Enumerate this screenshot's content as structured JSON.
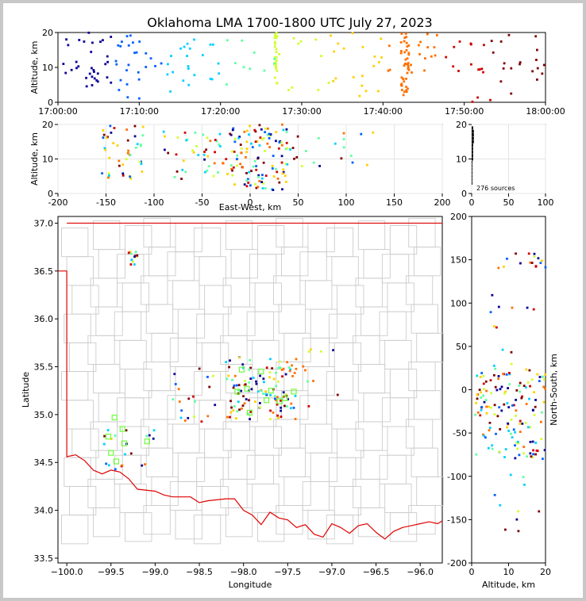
{
  "chart_data": [
    {
      "id": "time_height",
      "type": "scatter",
      "title": "Oklahoma LMA 1700-1800 UTC July 27, 2023",
      "xlabel": "",
      "ylabel": "Altitude, km",
      "xticks": [
        "17:00:00",
        "17:10:00",
        "17:20:00",
        "17:30:00",
        "17:40:00",
        "17:50:00",
        "18:00:00"
      ],
      "xlim_minutes": [
        0,
        60
      ],
      "ylim": [
        0,
        20
      ],
      "yticks": [
        0,
        10,
        20
      ],
      "color_by": "time",
      "colormap": [
        "#0a0096",
        "#0060ff",
        "#00d0ff",
        "#60ffa0",
        "#d0ff30",
        "#ffd000",
        "#ff7000",
        "#d00000",
        "#800000"
      ],
      "clusters": [
        {
          "t": [
            0,
            6
          ],
          "z": [
            3,
            20
          ],
          "n": 28
        },
        {
          "t": [
            6,
            12
          ],
          "z": [
            1,
            20
          ],
          "n": 30
        },
        {
          "t": [
            12,
            18
          ],
          "z": [
            3,
            18
          ],
          "n": 18
        },
        {
          "t": [
            18,
            26
          ],
          "z": [
            5,
            18
          ],
          "n": 14
        },
        {
          "t": [
            26.6,
            27.0
          ],
          "z": [
            5,
            20
          ],
          "n": 26
        },
        {
          "t": [
            27,
            36
          ],
          "z": [
            2,
            20
          ],
          "n": 16
        },
        {
          "t": [
            36,
            42
          ],
          "z": [
            1,
            20
          ],
          "n": 16
        },
        {
          "t": [
            42.2,
            43.2
          ],
          "z": [
            2,
            20
          ],
          "n": 40
        },
        {
          "t": [
            43,
            50
          ],
          "z": [
            8,
            20
          ],
          "n": 20
        },
        {
          "t": [
            50,
            56
          ],
          "z": [
            0,
            20
          ],
          "n": 20
        },
        {
          "t": [
            56,
            60
          ],
          "z": [
            5,
            20
          ],
          "n": 10
        }
      ]
    },
    {
      "id": "ew_height",
      "type": "scatter",
      "xlabel": "East-West, km",
      "ylabel": "Altitude, km",
      "xlim": [
        -200,
        200
      ],
      "xticks": [
        -200,
        -150,
        -100,
        -50,
        0,
        50,
        100,
        150,
        200
      ],
      "ylim": [
        0,
        20
      ],
      "yticks": [
        0,
        10,
        20
      ],
      "clusters": [
        {
          "x": [
            -20,
            40
          ],
          "z": [
            1,
            20
          ],
          "n": 120
        },
        {
          "x": [
            -155,
            -110
          ],
          "z": [
            4,
            20
          ],
          "n": 45
        },
        {
          "x": [
            -90,
            -50
          ],
          "z": [
            3,
            19
          ],
          "n": 20
        },
        {
          "x": [
            -50,
            -20
          ],
          "z": [
            5,
            18
          ],
          "n": 25
        },
        {
          "x": [
            40,
            100
          ],
          "z": [
            7,
            18
          ],
          "n": 15
        },
        {
          "x": [
            105,
            130
          ],
          "z": [
            8,
            20
          ],
          "n": 5
        }
      ]
    },
    {
      "id": "histogram",
      "type": "bar",
      "orientation": "horizontal",
      "annotation": "276 sources",
      "xlim": [
        0,
        100
      ],
      "xticks": [
        0,
        50,
        100
      ],
      "ylim": [
        0,
        20
      ],
      "yticks": [
        0,
        10,
        20
      ],
      "altitude_bins_km": [
        3,
        4,
        5,
        6,
        7,
        8,
        9,
        10,
        11,
        12,
        13,
        14,
        15,
        16,
        17,
        18,
        19
      ],
      "counts": [
        1,
        1,
        1,
        1,
        1,
        1,
        1,
        2,
        2,
        2,
        2,
        2,
        3,
        3,
        3,
        3,
        2
      ]
    },
    {
      "id": "plan_view",
      "type": "scatter",
      "xlabel": "Longitude",
      "ylabel": "Latitude",
      "xlim": [
        -100.1,
        -95.75
      ],
      "xticks": [
        -100.0,
        -99.5,
        -99.0,
        -98.5,
        -98.0,
        -97.5,
        -97.0,
        -96.5,
        -96.0
      ],
      "xtick_labels": [
        "−100.0",
        "−99.5",
        "−99.0",
        "−98.5",
        "−98.0",
        "−97.5",
        "−97.0",
        "−96.5",
        "−96.0"
      ],
      "ylim": [
        33.45,
        37.07
      ],
      "yticks": [
        33.5,
        34.0,
        34.5,
        35.0,
        35.5,
        36.0,
        36.5,
        37.0
      ],
      "ytick_labels": [
        "33.5",
        "34.0",
        "34.5",
        "35.0",
        "35.5",
        "36.0",
        "36.5",
        "37.0"
      ],
      "stations": [
        [
          -99.53,
          34.77
        ],
        [
          -99.5,
          34.6
        ],
        [
          -99.46,
          34.97
        ],
        [
          -99.44,
          34.51
        ],
        [
          -99.37,
          34.85
        ],
        [
          -99.35,
          34.7
        ],
        [
          -99.09,
          34.72
        ],
        [
          -98.07,
          35.24
        ],
        [
          -98.02,
          35.47
        ],
        [
          -97.96,
          35.27
        ],
        [
          -97.93,
          35.02
        ],
        [
          -97.8,
          35.45
        ],
        [
          -97.74,
          35.15
        ],
        [
          -97.69,
          35.25
        ],
        [
          -97.59,
          35.14
        ],
        [
          -97.53,
          35.17
        ],
        [
          -97.43,
          35.24
        ]
      ],
      "clusters": [
        {
          "lon": [
            -98.2,
            -97.4
          ],
          "lat": [
            34.95,
            35.6
          ],
          "n": 120
        },
        {
          "lon": [
            -99.6,
            -99.0
          ],
          "lat": [
            34.4,
            34.9
          ],
          "n": 20
        },
        {
          "lon": [
            -99.3,
            -99.2
          ],
          "lat": [
            36.55,
            36.7
          ],
          "n": 12
        },
        {
          "lon": [
            -98.8,
            -98.3
          ],
          "lat": [
            34.9,
            35.5
          ],
          "n": 20
        },
        {
          "lon": [
            -97.4,
            -96.9
          ],
          "lat": [
            35.0,
            35.7
          ],
          "n": 10
        }
      ]
    },
    {
      "id": "ns_height",
      "type": "scatter",
      "xlabel": "Altitude, km",
      "ylabel": "North-South, km",
      "xlim": [
        0,
        20
      ],
      "xticks": [
        0,
        10,
        20
      ],
      "ylim": [
        -200,
        200
      ],
      "yticks": [
        -200,
        -150,
        -100,
        -50,
        0,
        50,
        100,
        150,
        200
      ],
      "clusters": [
        {
          "z": [
            1,
            20
          ],
          "y": [
            -80,
            30
          ],
          "n": 150
        },
        {
          "z": [
            5,
            20
          ],
          "y": [
            140,
            158
          ],
          "n": 16
        },
        {
          "z": [
            4,
            20
          ],
          "y": [
            -180,
            -90
          ],
          "n": 10
        },
        {
          "z": [
            5,
            20
          ],
          "y": [
            40,
            110
          ],
          "n": 10
        }
      ]
    }
  ]
}
